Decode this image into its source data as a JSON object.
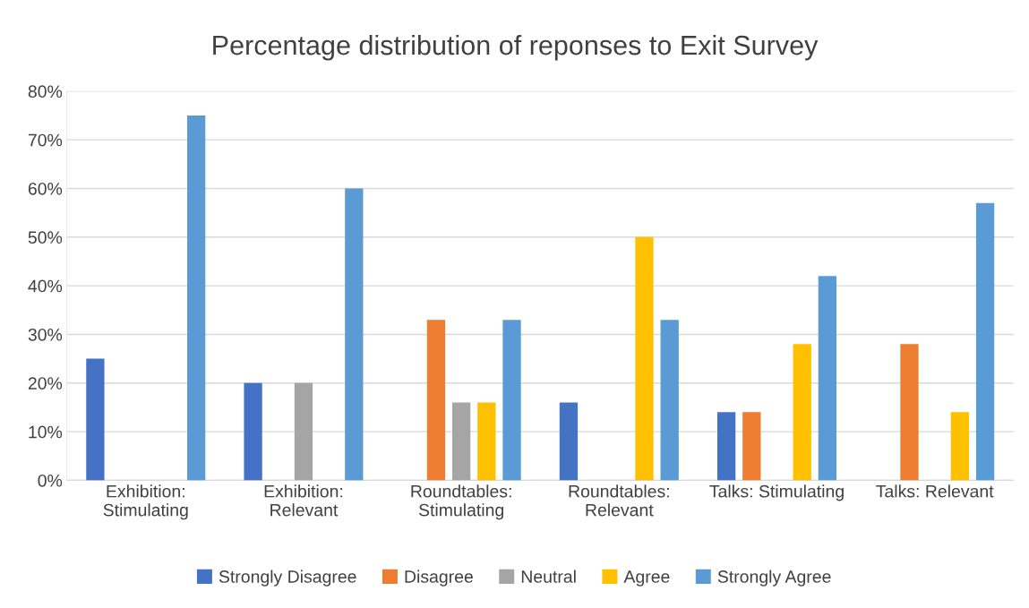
{
  "chart_data": {
    "type": "bar",
    "title": "Percentage distribution of reponses to Exit Survey",
    "categories": [
      "Exhibition:\nStimulating",
      "Exhibition:\nRelevant",
      "Roundtables:\nStimulating",
      "Roundtables:\nRelevant",
      "Talks: Stimulating",
      "Talks: Relevant"
    ],
    "series": [
      {
        "name": "Strongly Disagree",
        "color": "#4472c4",
        "values": [
          25,
          20,
          0,
          16,
          14,
          0
        ]
      },
      {
        "name": "Disagree",
        "color": "#ed7d31",
        "values": [
          0,
          0,
          33,
          0,
          14,
          28
        ]
      },
      {
        "name": "Neutral",
        "color": "#a5a5a5",
        "values": [
          0,
          20,
          16,
          0,
          0,
          0
        ]
      },
      {
        "name": "Agree",
        "color": "#ffc000",
        "values": [
          0,
          0,
          16,
          50,
          28,
          14
        ]
      },
      {
        "name": "Strongly Agree",
        "color": "#5b9bd5",
        "values": [
          75,
          60,
          33,
          33,
          42,
          57
        ]
      }
    ],
    "ylim": [
      0,
      80
    ],
    "yticks": [
      {
        "value": 0,
        "label": "0%"
      },
      {
        "value": 10,
        "label": "10%"
      },
      {
        "value": 20,
        "label": "20%"
      },
      {
        "value": 30,
        "label": "30%"
      },
      {
        "value": 40,
        "label": "40%"
      },
      {
        "value": 50,
        "label": "50%"
      },
      {
        "value": 60,
        "label": "60%"
      },
      {
        "value": 70,
        "label": "70%"
      },
      {
        "value": 80,
        "label": "80%"
      }
    ],
    "grid": "y",
    "legend": "bottom"
  }
}
